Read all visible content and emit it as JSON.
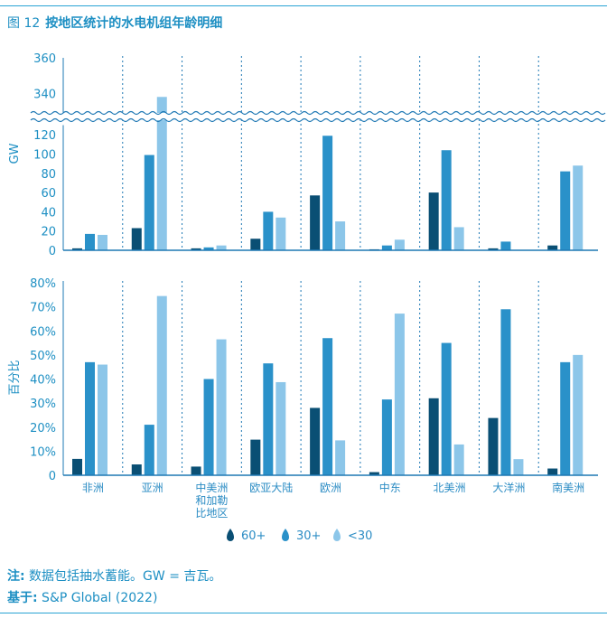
{
  "figure": {
    "number": "图 12",
    "title": "按地区统计的水电机组年龄明细"
  },
  "colors": {
    "s60": "#0a4f74",
    "s30": "#2a91c9",
    "s0": "#8cc6e9",
    "axis": "#1e78b4",
    "text": "#1d8fc3"
  },
  "chart_data": [
    {
      "type": "bar",
      "ylabel": "GW",
      "axis_break": [
        130,
        330
      ],
      "ylim": [
        0,
        360
      ],
      "yticks": [
        "0",
        "20",
        "40",
        "60",
        "80",
        "100",
        "120",
        "340",
        "360"
      ],
      "categories": [
        "非洲",
        "亚洲",
        "中美洲\n和加勒\n比地区",
        "欧亚大陆",
        "欧洲",
        "中东",
        "北美洲",
        "大洋洲",
        "南美洲"
      ],
      "series": [
        {
          "name": "60+",
          "values": [
            2,
            23,
            2,
            12,
            57,
            1,
            60,
            2,
            5
          ]
        },
        {
          "name": "30+",
          "values": [
            17,
            99,
            3,
            40,
            119,
            5,
            104,
            9,
            82
          ]
        },
        {
          "name": "<30",
          "values": [
            16,
            338,
            5,
            34,
            30,
            11,
            24,
            0,
            88
          ]
        }
      ],
      "grid": false
    },
    {
      "type": "bar",
      "ylabel": "百分比",
      "ylim": [
        0,
        80
      ],
      "yticks": [
        "0",
        "10%",
        "20%",
        "30%",
        "40%",
        "50%",
        "60%",
        "70%",
        "80%"
      ],
      "categories": [
        "非洲",
        "亚洲",
        "中美洲\n和加勒\n比地区",
        "欧亚大陆",
        "欧洲",
        "中东",
        "北美洲",
        "大洋洲",
        "南美洲"
      ],
      "series": [
        {
          "name": "60+",
          "values": [
            6.8,
            4.5,
            3.6,
            14.8,
            28,
            1.3,
            32,
            23.8,
            2.8
          ]
        },
        {
          "name": "30+",
          "values": [
            47,
            21,
            40,
            46.5,
            57,
            31.5,
            55,
            69,
            47
          ]
        },
        {
          "name": "<30",
          "values": [
            46,
            74.5,
            56.5,
            38.7,
            14.5,
            67.2,
            12.8,
            6.7,
            50
          ]
        }
      ],
      "grid": false,
      "legend": "bottom-center"
    }
  ],
  "notes": {
    "note_label": "注:",
    "note_text": " 数据包括抽水蓄能。GW = 吉瓦。",
    "source_label": "基于:",
    "source_text": " S&P Global (2022)"
  }
}
